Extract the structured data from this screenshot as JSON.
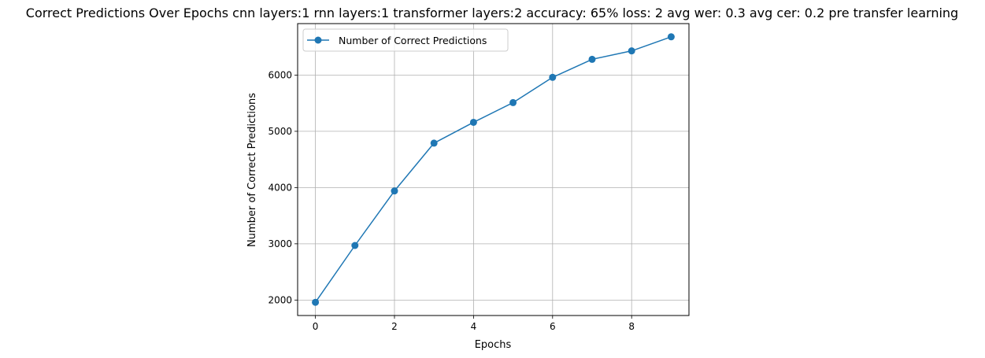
{
  "chart_data": {
    "type": "line",
    "title": "Correct Predictions Over Epochs cnn layers:1 rnn layers:1 transformer layers:2 accuracy: 65% loss: 2 avg wer: 0.3 avg cer: 0.2 pre transfer learning",
    "xlabel": "Epochs",
    "ylabel": "Number of Correct Predictions",
    "x": [
      0,
      1,
      2,
      3,
      4,
      5,
      6,
      7,
      8,
      9
    ],
    "series": [
      {
        "name": "Number of Correct Predictions",
        "values": [
          1960,
          2970,
          3940,
          4790,
          5160,
          5510,
          5960,
          6280,
          6430,
          6680
        ],
        "color": "#1f77b4",
        "marker": "circle"
      }
    ],
    "xticks": [
      0,
      2,
      4,
      6,
      8
    ],
    "yticks": [
      2000,
      3000,
      4000,
      5000,
      6000
    ],
    "xlim": [
      -0.45,
      9.45
    ],
    "ylim": [
      1725,
      6915
    ],
    "grid": true,
    "legend_position": "top-left"
  }
}
